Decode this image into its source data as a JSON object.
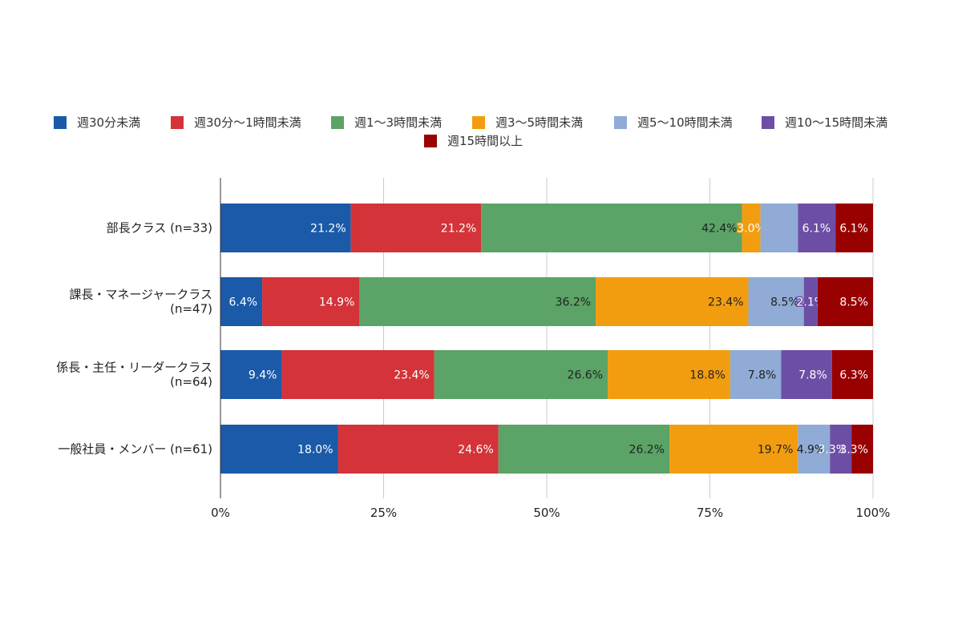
{
  "chart_data": {
    "type": "bar",
    "orientation": "horizontal",
    "stacked": "percent",
    "legend_position": "top",
    "grid": true,
    "xlim": [
      0,
      100
    ],
    "x_ticks": [
      "0%",
      "25%",
      "50%",
      "75%",
      "100%"
    ],
    "categories": [
      [
        "部長クラス (n=33)"
      ],
      [
        "課長・マネージャークラス",
        "(n=47)"
      ],
      [
        "係長・主任・リーダークラス",
        "(n=64)"
      ],
      [
        "一般社員・メンバー (n=61)"
      ]
    ],
    "series": [
      {
        "name": "週30分未満",
        "color": "#1a5aa8",
        "values": [
          21.2,
          6.4,
          9.4,
          18.0
        ],
        "labels": [
          "21.2%",
          "6.4%",
          "9.4%",
          "18.0%"
        ]
      },
      {
        "name": "週30分〜1時間未満",
        "color": "#d33339",
        "values": [
          21.2,
          14.9,
          23.4,
          24.6
        ],
        "labels": [
          "21.2%",
          "14.9%",
          "23.4%",
          "24.6%"
        ]
      },
      {
        "name": "週1〜3時間未満",
        "color": "#5ba366",
        "values": [
          42.4,
          36.2,
          26.6,
          26.2
        ],
        "labels": [
          "42.4%",
          "36.2%",
          "26.6%",
          "26.2%"
        ]
      },
      {
        "name": "週3〜5時間未満",
        "color": "#f29d10",
        "values": [
          3.0,
          23.4,
          18.8,
          19.7
        ],
        "labels": [
          "3.0%",
          "23.4%",
          "18.8%",
          "19.7%"
        ]
      },
      {
        "name": "週5〜10時間未満",
        "color": "#8fabd6",
        "values": [
          6.1,
          8.5,
          7.8,
          4.9
        ],
        "labels": [
          "",
          "8.5%",
          "7.8%",
          "4.9%"
        ]
      },
      {
        "name": "週10〜15時間未満",
        "color": "#6d4ea5",
        "values": [
          6.1,
          2.1,
          7.8,
          3.3
        ],
        "labels": [
          "6.1%",
          "2.1%",
          "7.8%",
          "3.3%"
        ]
      },
      {
        "name": "週15時間以上",
        "color": "#990000",
        "values": [
          6.1,
          8.5,
          6.3,
          3.3
        ],
        "labels": [
          "6.1%",
          "8.5%",
          "6.3%",
          "3.3%"
        ]
      }
    ]
  }
}
